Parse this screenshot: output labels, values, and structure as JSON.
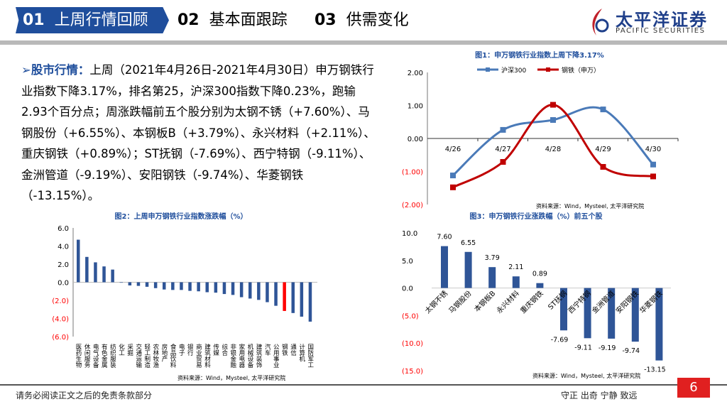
{
  "header": {
    "tabs": [
      {
        "num": "01",
        "label": "上周行情回顾"
      },
      {
        "num": "02",
        "label": "基本面跟踪"
      },
      {
        "num": "03",
        "label": "供需变化"
      }
    ],
    "logo_cn": "太平洋证券",
    "logo_en": "PACIFIC SECURITIES",
    "accent": "#1f4e9c"
  },
  "summary": {
    "key": "股市行情：",
    "text": "上周（2021年4月26日-2021年4月30日）申万钢铁行业指数下降3.17%，排名第25，沪深300指数下降0.23%，跑输2.93个百分点；周涨跌幅前五个股分别为太钢不锈（+7.60%）、马钢股份（+6.55%）、本钢板B（+3.79%）、永兴材料（+2.11%）、重庆钢铁（+0.89%）；ST抚钢（-7.69%）、西宁特钢（-9.11%）、金洲管道（-9.19%）、安阳钢铁（-9.74%）、华菱钢铁（-13.15%）。"
  },
  "chart_data": [
    {
      "type": "line",
      "title": "图1：申万钢铁行业指数上周下降3.17%",
      "categories": [
        "4/26",
        "4/27",
        "4/28",
        "4/29",
        "4/30"
      ],
      "series": [
        {
          "name": "沪深300",
          "color": "#4a7ab8",
          "values": [
            -1.12,
            0.26,
            0.56,
            0.88,
            -0.79
          ]
        },
        {
          "name": "钢铁（申万）",
          "color": "#c00000",
          "values": [
            -1.48,
            -0.71,
            1.02,
            -0.86,
            -1.15
          ]
        }
      ],
      "ylim": [
        -2,
        2
      ],
      "yticks": [
        "2.00",
        "1.00",
        "0.00",
        "(1.00)",
        "(2.00)"
      ],
      "source": "资料来源：Wind，Mysteel, 太平洋研究院",
      "legend": "top"
    },
    {
      "type": "bar",
      "title": "图2：上周申万钢铁行业指数涨跌幅（%）",
      "categories": [
        "医药生物",
        "休闲服务",
        "电气设备",
        "有色金属",
        "纺织服装",
        "化工",
        "采掘",
        "交通运输",
        "轻工制造",
        "农林牧渔",
        "房地产",
        "食品饮料",
        "电子",
        "银行",
        "商业贸易",
        "建筑材料",
        "传媒",
        "综合",
        "非银金融",
        "家用电器",
        "机械设备",
        "建筑装饰",
        "汽车",
        "公用事业",
        "钢铁",
        "通信",
        "计算机",
        "国防军工"
      ],
      "values": [
        4.7,
        2.8,
        2.2,
        1.75,
        1.4,
        -0.05,
        -0.35,
        -0.4,
        -0.5,
        -0.65,
        -0.8,
        -0.85,
        -0.85,
        -0.95,
        -1.0,
        -1.1,
        -1.15,
        -1.3,
        -1.4,
        -1.65,
        -1.8,
        -1.95,
        -2.2,
        -2.6,
        -3.17,
        -3.4,
        -3.8,
        -4.35
      ],
      "highlight": "钢铁",
      "bar_color": "#2f5597",
      "highlight_color": "#ff0000",
      "ylim": [
        -6,
        6
      ],
      "yticks": [
        "6.0",
        "4.0",
        "2.0",
        "0.0",
        "(2.0)",
        "(4.0)",
        "(6.0)"
      ],
      "source": "资料来源：Wind，Mysteel, 太平洋研究院"
    },
    {
      "type": "bar",
      "title": "图3：申万钢铁行业涨跌幅（%）前五个股",
      "categories": [
        "太钢不锈",
        "马钢股份",
        "本钢板B",
        "永兴材料",
        "重庆钢铁",
        "ST抚钢",
        "西宁特钢",
        "金洲管道",
        "安阳钢铁",
        "华菱钢铁"
      ],
      "values": [
        7.6,
        6.55,
        3.79,
        2.11,
        0.89,
        -7.69,
        -9.11,
        -9.19,
        -9.74,
        -13.15
      ],
      "labels": [
        "7.60",
        "6.55",
        "3.79",
        "2.11",
        "0.89",
        "-7.69",
        "-9.11",
        "-9.19",
        "-9.74",
        "-13.15"
      ],
      "ylim": [
        -15,
        10
      ],
      "yticks": [
        "10.0",
        "5.0",
        "0.0",
        "(5.0)",
        "(10.0)",
        "(15.0)"
      ],
      "source": "资料来源：Wind，Mysteel, 太平洋研究院"
    }
  ],
  "footer": {
    "disclaimer": "请务必阅读正文之后的免责条款部分",
    "motto": "守正 出奇 宁静 致远",
    "page": "6"
  }
}
